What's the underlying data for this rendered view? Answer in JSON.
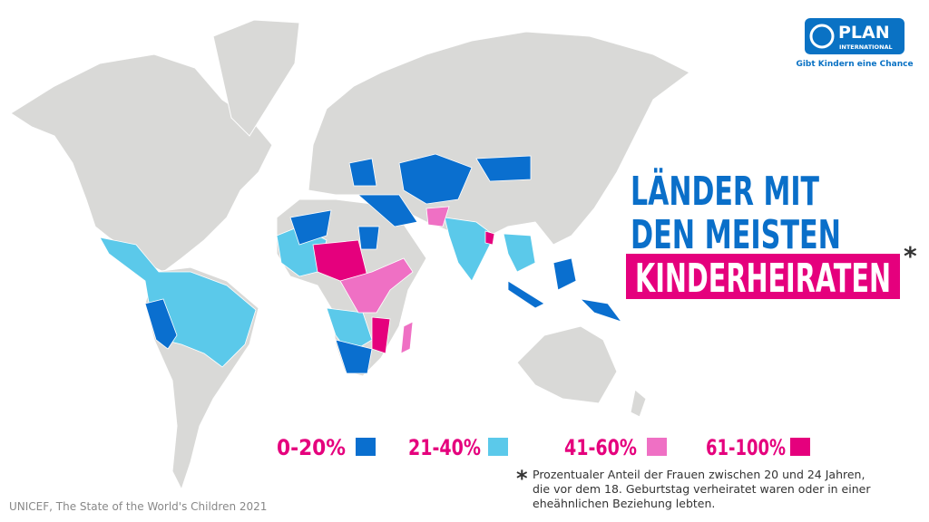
{
  "logo": {
    "name": "PLAN",
    "subname": "INTERNATIONAL",
    "tagline": "Gibt Kindern eine Chance"
  },
  "title": {
    "line1": "LÄNDER MIT",
    "line2": "DEN MEISTEN",
    "highlight": "KINDERHEIRATEN",
    "marker": "*"
  },
  "legend": {
    "items": [
      {
        "label": "0-20%",
        "color": "#0a6fcf"
      },
      {
        "label": "21-40%",
        "color": "#5bc9ea"
      },
      {
        "label": "41-60%",
        "color": "#ef70c4"
      },
      {
        "label": "61-100%",
        "color": "#e5007d"
      }
    ]
  },
  "footnote": {
    "marker": "*",
    "lines": [
      "Prozentualer Anteil der Frauen zwischen 20 und 24 Jahren,",
      "die vor dem 18. Geburtstag verheiratet waren oder in einer",
      "eheähnlichen Beziehung lebten."
    ]
  },
  "source": "UNICEF, The State of the World's Children 2021"
}
